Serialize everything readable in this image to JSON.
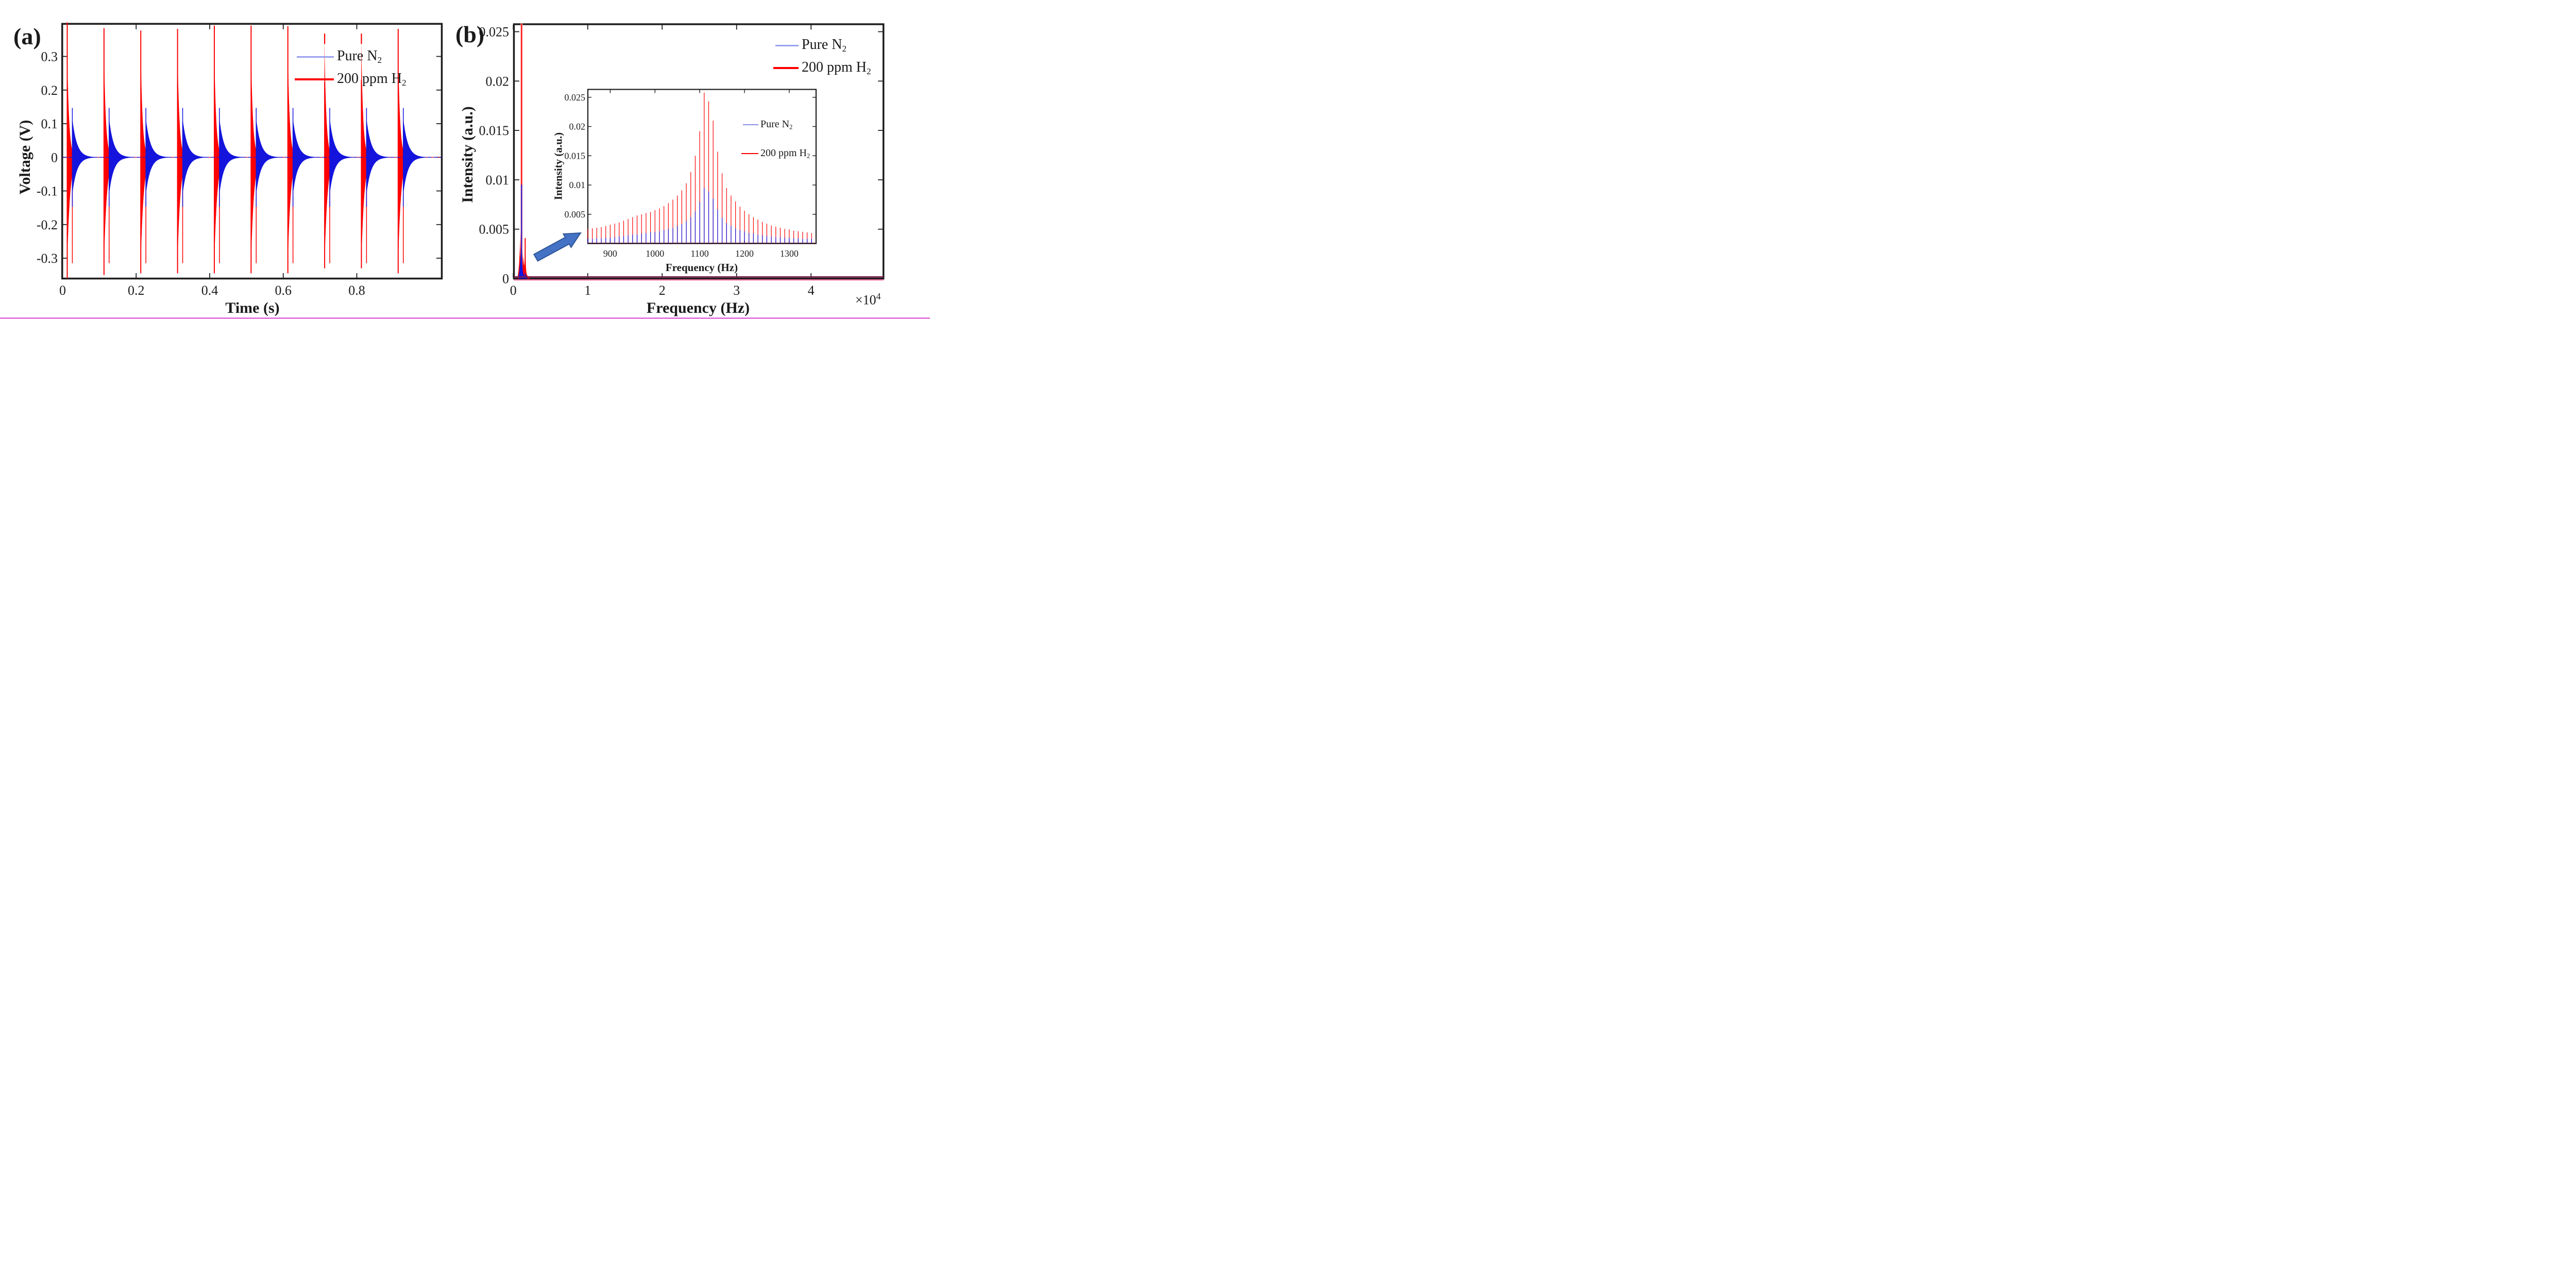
{
  "figure": {
    "background": "#ffffff",
    "bottom_border_color": "#d62bd6",
    "colors": {
      "n2_plot": "#1414dd",
      "h2_plot": "#fe0000",
      "n2_legend_line": "#98a0ee",
      "h2_legend_line": "#fe0000",
      "spine": "#1d1d1d",
      "baseline_overlap_maroon": "#7a1f4e",
      "baseline_pink": "#f2699e",
      "arrow_fill": "#4472c4",
      "arrow_edge": "#2f5597"
    },
    "panel_a": {
      "tag": "(a)",
      "xlabel": "Time (s)",
      "ylabel": "Voltage (V)",
      "legend": [
        {
          "main": "Pure N",
          "sub": "2"
        },
        {
          "main": "200 ppm H",
          "sub": "2"
        }
      ]
    },
    "panel_b": {
      "tag": "(b)",
      "xlabel": "Frequency (Hz)",
      "ylabel": "Intensity (a.u.)",
      "x_scale_base": "×10",
      "x_scale_exp": "4",
      "legend": [
        {
          "main": "Pure N",
          "sub": "2"
        },
        {
          "main": "200 ppm H",
          "sub": "2"
        }
      ]
    },
    "inset": {
      "xlabel": "Frequency (Hz)",
      "ylabel": "Intensity (a.u.)",
      "legend": [
        {
          "main": "Pure N",
          "sub": "2"
        },
        {
          "main": "200 ppm H",
          "sub": "2"
        }
      ]
    }
  },
  "chart_data": [
    {
      "id": "panel-a-time-series",
      "type": "line",
      "title": "",
      "xlabel": "Time (s)",
      "ylabel": "Voltage (V)",
      "xlim": [
        0,
        1.031
      ],
      "ylim": [
        -0.3605,
        0.397
      ],
      "xticks": [
        0,
        0.2,
        0.4,
        0.6,
        0.8
      ],
      "xtick_labels": [
        "0",
        "0.2",
        "0.4",
        "0.6",
        "0.8"
      ],
      "yticks": [
        0.3,
        0.2,
        0.1,
        0,
        -0.1,
        -0.2,
        -0.3
      ],
      "ytick_labels": [
        "0.3",
        "0.2",
        "0.1",
        "0",
        "-0.1",
        "-0.2",
        "-0.3"
      ],
      "grid": false,
      "legend_position": "upper-center-right",
      "series": [
        {
          "name": "Pure N2",
          "color_key": "n2_plot"
        },
        {
          "name": "200 ppm H2",
          "color_key": "h2_plot"
        }
      ],
      "burst_model": {
        "start_times_s": [
          0.012,
          0.112,
          0.212,
          0.312,
          0.412,
          0.512,
          0.612,
          0.712,
          0.812,
          0.912
        ],
        "h2_spike_top_V": [
          0.401,
          0.384,
          0.377,
          0.382,
          0.392,
          0.392,
          0.39,
          0.225,
          0.23,
          0.382
        ],
        "h2_spike_bottom_V": [
          -0.36,
          -0.35,
          -0.345,
          -0.345,
          -0.345,
          -0.345,
          -0.345,
          -0.33,
          -0.33,
          -0.345
        ],
        "h2_top_dash_bursts": [
          7,
          8
        ],
        "h2_top_dash_range_V": [
          0.368,
          0.337
        ],
        "h2_envelope": {
          "peak_pos_V": 0.345,
          "peak_neg_V": 0.335,
          "tau_pos_s": 0.0052,
          "tau_neg_s": 0.0078,
          "duration_s": 0.03
        },
        "h2_second_neg_spike": {
          "offset_s": 0.0145,
          "top_V": 0.02,
          "bottom_V": -0.315
        },
        "n2_envelope": {
          "delay_s": 0.0145,
          "peak_V": 0.115,
          "tau_s": 0.0125,
          "duration_s": 0.062,
          "onset_spike_V": 0.147
        }
      }
    },
    {
      "id": "panel-b-spectrum",
      "type": "area",
      "title": "",
      "xlabel": "Frequency (Hz)",
      "ylabel": "Intensity (a.u.)",
      "x_scale_label": "×10^4",
      "xlim": [
        0,
        49700
      ],
      "ylim": [
        0,
        0.0258
      ],
      "xticks": [
        0,
        10000,
        20000,
        30000,
        40000
      ],
      "xtick_labels": [
        "0",
        "1",
        "2",
        "3",
        "4"
      ],
      "yticks": [
        0,
        0.005,
        0.01,
        0.015,
        0.02,
        0.025
      ],
      "ytick_labels": [
        "0",
        "0.005",
        "0.01",
        "0.015",
        "0.02",
        "0.025"
      ],
      "grid": false,
      "legend_position": "upper-right",
      "h2_envelope_Hz_val": [
        [
          600,
          0.0002
        ],
        [
          700,
          0.0008
        ],
        [
          780,
          0.0015
        ],
        [
          850,
          0.0025
        ],
        [
          900,
          0.0032
        ],
        [
          950,
          0.004
        ],
        [
          1000,
          0.005
        ],
        [
          1030,
          0.0055
        ],
        [
          1060,
          0.006
        ],
        [
          1090,
          0.0062
        ],
        [
          1110,
          0.0062
        ],
        [
          1130,
          0.006
        ],
        [
          1150,
          0.0052
        ],
        [
          1180,
          0.0042
        ],
        [
          1220,
          0.0032
        ],
        [
          1260,
          0.0025
        ],
        [
          1300,
          0.0022
        ],
        [
          1340,
          0.002
        ],
        [
          1380,
          0.0018
        ],
        [
          1420,
          0.0015
        ],
        [
          1460,
          0.0013
        ],
        [
          1500,
          0.0015
        ],
        [
          1540,
          0.0022
        ],
        [
          1570,
          0.003
        ],
        [
          1590,
          0.0038
        ],
        [
          1600,
          0.0041
        ],
        [
          1610,
          0.0038
        ],
        [
          1630,
          0.003
        ],
        [
          1660,
          0.002
        ],
        [
          1700,
          0.0012
        ],
        [
          1750,
          0.0007
        ],
        [
          1820,
          0.0004
        ],
        [
          1900,
          0.0003
        ],
        [
          2000,
          0.0002
        ],
        [
          2200,
          0.0001
        ]
      ],
      "n2_envelope_Hz_val": [
        [
          700,
          0.0002
        ],
        [
          800,
          0.0006
        ],
        [
          880,
          0.0012
        ],
        [
          950,
          0.0018
        ],
        [
          1000,
          0.0024
        ],
        [
          1040,
          0.0029
        ],
        [
          1070,
          0.0032
        ],
        [
          1100,
          0.0033
        ],
        [
          1130,
          0.003
        ],
        [
          1160,
          0.0024
        ],
        [
          1200,
          0.0017
        ],
        [
          1250,
          0.0011
        ],
        [
          1300,
          0.0007
        ],
        [
          1350,
          0.0005
        ],
        [
          1420,
          0.0003
        ],
        [
          1500,
          0.0003
        ],
        [
          1560,
          0.0005
        ],
        [
          1600,
          0.0007
        ],
        [
          1640,
          0.0005
        ],
        [
          1700,
          0.0003
        ],
        [
          1800,
          0.0002
        ],
        [
          1900,
          0.0001
        ]
      ],
      "h2_spikes_Hz_val": [
        [
          1113,
          0.0259
        ],
        [
          1600,
          0.0041
        ]
      ],
      "n2_spikes_Hz_val": [
        [
          1113,
          0.0095
        ]
      ],
      "baseline": {
        "note": "overlapped red/blue traces hug zero across full span"
      }
    },
    {
      "id": "panel-b-inset-zoom",
      "type": "line",
      "title": "",
      "xlabel": "Frequency (Hz)",
      "ylabel": "Intensity (a.u.)",
      "xlim": [
        850,
        1360
      ],
      "ylim": [
        0,
        0.0263
      ],
      "xticks": [
        900,
        1000,
        1100,
        1200,
        1300
      ],
      "xtick_labels": [
        "900",
        "1000",
        "1100",
        "1200",
        "1300"
      ],
      "yticks": [
        0.005,
        0.01,
        0.015,
        0.02,
        0.025
      ],
      "ytick_labels": [
        "0.005",
        "0.01",
        "0.015",
        "0.02",
        "0.025"
      ],
      "grid": false,
      "legend_position": "upper-right",
      "comb_frequencies_Hz": [
        850,
        860,
        870,
        880,
        890,
        900,
        910,
        920,
        930,
        940,
        950,
        960,
        970,
        980,
        990,
        1000,
        1010,
        1020,
        1030,
        1040,
        1050,
        1060,
        1070,
        1080,
        1090,
        1100,
        1110,
        1120,
        1130,
        1140,
        1150,
        1160,
        1170,
        1180,
        1190,
        1200,
        1210,
        1220,
        1230,
        1240,
        1250,
        1260,
        1270,
        1280,
        1290,
        1300,
        1310,
        1320,
        1330,
        1340,
        1350
      ],
      "h2_comb_values": [
        0.0025,
        0.0026,
        0.0027,
        0.0028,
        0.003,
        0.0032,
        0.0034,
        0.0036,
        0.0039,
        0.0042,
        0.0045,
        0.0048,
        0.005,
        0.0052,
        0.0054,
        0.0057,
        0.006,
        0.0064,
        0.0069,
        0.0075,
        0.0082,
        0.0091,
        0.0103,
        0.0122,
        0.015,
        0.0192,
        0.0258,
        0.0243,
        0.021,
        0.0157,
        0.012,
        0.0095,
        0.0082,
        0.0072,
        0.0063,
        0.0056,
        0.005,
        0.0045,
        0.0041,
        0.0037,
        0.0034,
        0.0031,
        0.0029,
        0.0027,
        0.0025,
        0.0024,
        0.0022,
        0.0021,
        0.002,
        0.0019,
        0.0018
      ],
      "n2_comb_values": [
        0.0008,
        0.0008,
        0.0009,
        0.0009,
        0.001,
        0.001,
        0.0011,
        0.0012,
        0.0013,
        0.0014,
        0.0015,
        0.0016,
        0.0017,
        0.0018,
        0.0019,
        0.002,
        0.0021,
        0.0023,
        0.0025,
        0.0027,
        0.003,
        0.0033,
        0.0038,
        0.0045,
        0.0055,
        0.0071,
        0.0095,
        0.0089,
        0.0077,
        0.0058,
        0.0044,
        0.0035,
        0.003,
        0.0026,
        0.0023,
        0.0021,
        0.0018,
        0.0017,
        0.0015,
        0.0014,
        0.0013,
        0.0012,
        0.0011,
        0.0011,
        0.001,
        0.001,
        0.0009,
        0.0009,
        0.0008,
        0.0008,
        0.0008
      ]
    }
  ]
}
